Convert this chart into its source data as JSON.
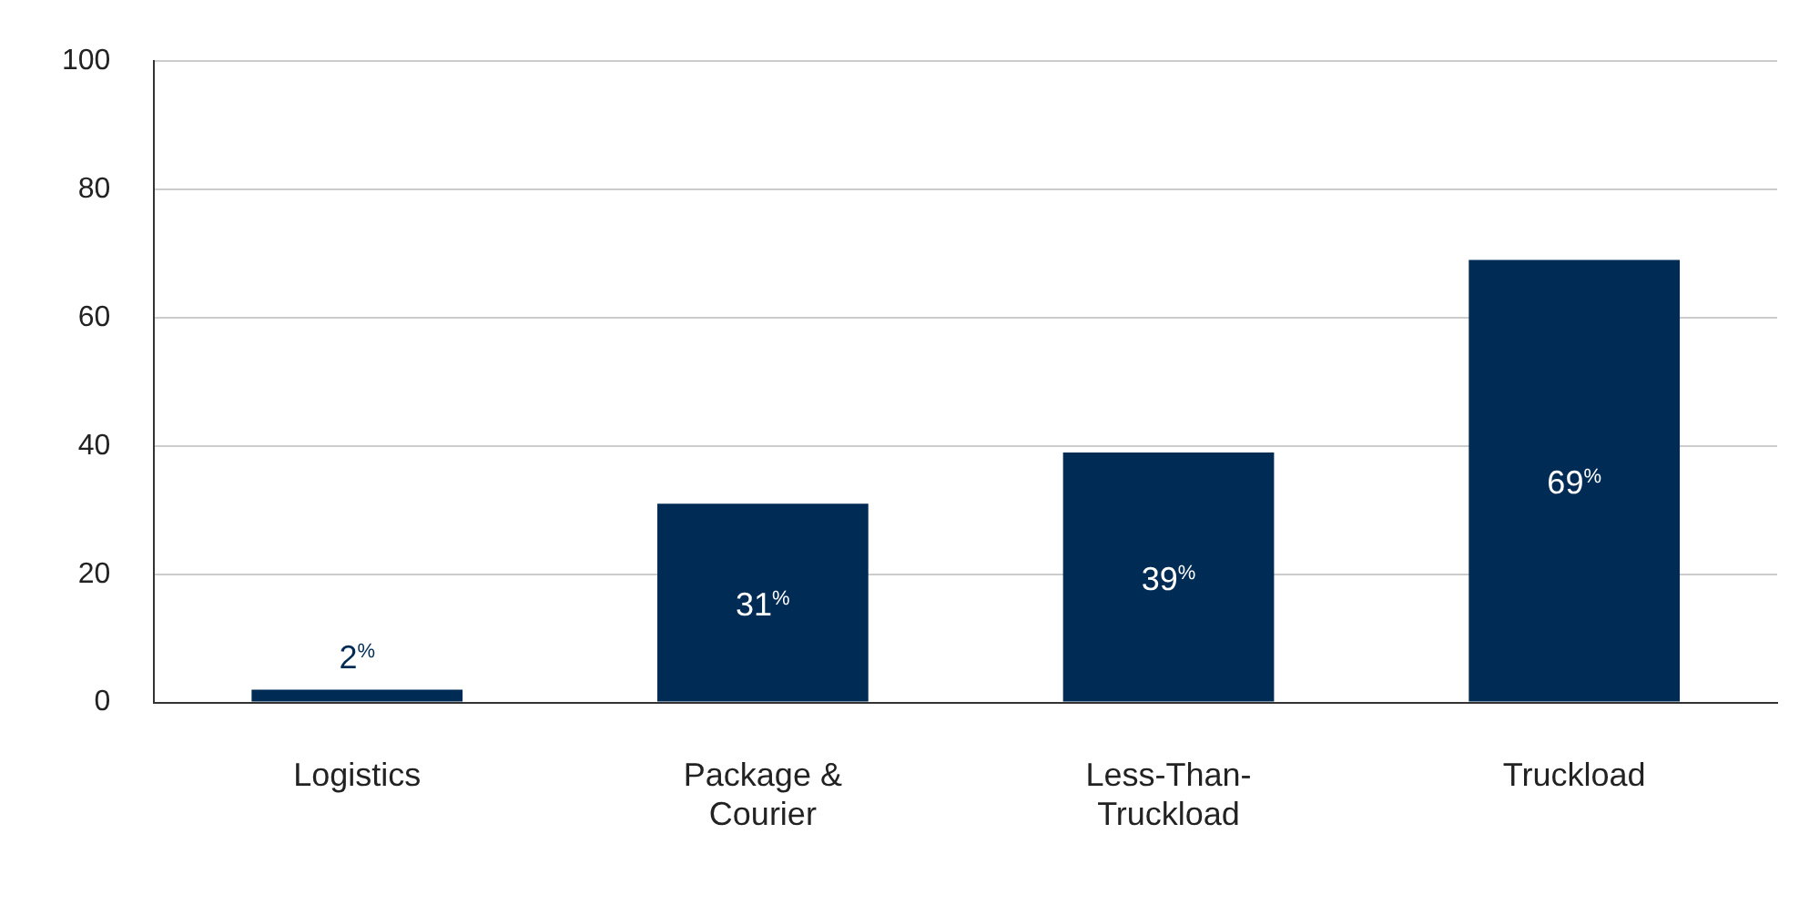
{
  "chart_data": {
    "type": "bar",
    "categories": [
      "Logistics",
      "Package & Courier",
      "Less-Than-Truckload",
      "Truckload"
    ],
    "values": [
      2,
      31,
      39,
      69
    ],
    "color": "#002b55",
    "value_labels": [
      "2$^{%}$",
      "31$^{%}$",
      "39$^{%}$",
      "69$^{%}$"
    ],
    "ylim": [
      0,
      100
    ],
    "yticks": [
      0,
      20,
      40,
      60,
      80,
      100
    ],
    "grid": "y",
    "legend": false
  }
}
